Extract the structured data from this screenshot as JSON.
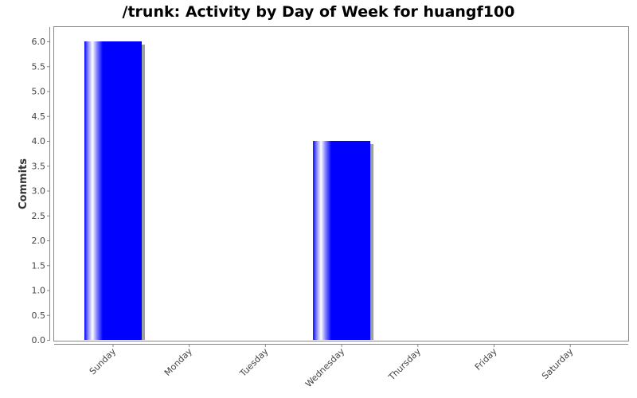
{
  "chart_data": {
    "type": "bar",
    "title": "/trunk: Activity by Day of Week for huangf100",
    "xlabel": "",
    "ylabel": "Commits",
    "categories": [
      "Sunday",
      "Monday",
      "Tuesday",
      "Wednesday",
      "Thursday",
      "Friday",
      "Saturday"
    ],
    "values": [
      6,
      0,
      0,
      4,
      0,
      0,
      0
    ],
    "ylim": [
      0,
      6.2
    ],
    "yticks": [
      0.0,
      0.5,
      1.0,
      1.5,
      2.0,
      2.5,
      3.0,
      3.5,
      4.0,
      4.5,
      5.0,
      5.5,
      6.0
    ],
    "ytick_labels": [
      "0.0",
      "0.5",
      "1.0",
      "1.5",
      "2.0",
      "2.5",
      "3.0",
      "3.5",
      "4.0",
      "4.5",
      "5.0",
      "5.5",
      "6.0"
    ],
    "grid": false,
    "colors": {
      "bar": "#0000ff",
      "bar_highlight": "#ffffff",
      "bar_shadow": "#a0a0a0",
      "axis": "#888888",
      "plot_border": "#888888"
    }
  }
}
